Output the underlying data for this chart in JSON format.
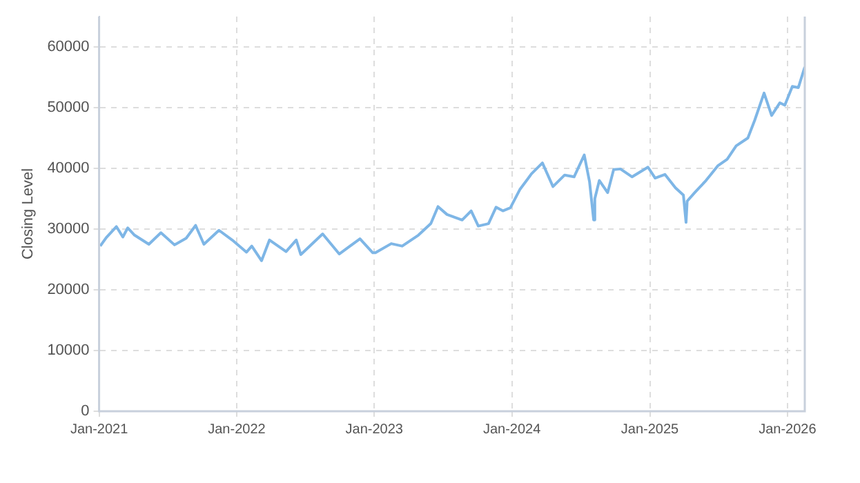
{
  "chart_data": {
    "type": "line",
    "ylabel": "Closing Level",
    "xlim": [
      "2021-01-01",
      "2026-02-16"
    ],
    "ylim": [
      0,
      65000
    ],
    "xticks": [
      {
        "value": "2021-01-01",
        "label": "Jan-2021"
      },
      {
        "value": "2022-01-01",
        "label": "Jan-2022"
      },
      {
        "value": "2023-01-01",
        "label": "Jan-2023"
      },
      {
        "value": "2024-01-01",
        "label": "Jan-2024"
      },
      {
        "value": "2025-01-01",
        "label": "Jan-2025"
      },
      {
        "value": "2026-01-01",
        "label": "Jan-2026"
      }
    ],
    "yticks": [
      0,
      10000,
      20000,
      30000,
      40000,
      50000,
      60000
    ],
    "grid": true,
    "legend": false,
    "marker": "none",
    "line_style": "solid",
    "x": [
      "2021-01-04",
      "2021-01-20",
      "2021-02-16",
      "2021-03-05",
      "2021-03-18",
      "2021-04-05",
      "2021-05-13",
      "2021-06-14",
      "2021-07-20",
      "2021-08-20",
      "2021-09-14",
      "2021-10-06",
      "2021-11-15",
      "2021-12-20",
      "2022-01-27",
      "2022-02-10",
      "2022-03-08",
      "2022-03-29",
      "2022-05-12",
      "2022-06-08",
      "2022-06-20",
      "2022-08-17",
      "2022-09-30",
      "2022-11-24",
      "2022-12-28",
      "2023-01-04",
      "2023-02-15",
      "2023-03-16",
      "2023-04-28",
      "2023-05-31",
      "2023-06-19",
      "2023-07-13",
      "2023-08-22",
      "2023-09-15",
      "2023-10-04",
      "2023-10-31",
      "2023-11-20",
      "2023-12-08",
      "2023-12-28",
      "2024-01-22",
      "2024-02-22",
      "2024-03-22",
      "2024-04-19",
      "2024-05-20",
      "2024-06-14",
      "2024-07-11",
      "2024-07-25",
      "2024-08-05",
      "2024-08-08",
      "2024-08-20",
      "2024-09-11",
      "2024-09-27",
      "2024-10-15",
      "2024-11-15",
      "2024-12-27",
      "2025-01-15",
      "2025-02-10",
      "2025-03-10",
      "2025-03-31",
      "2025-04-07",
      "2025-04-10",
      "2025-04-30",
      "2025-05-30",
      "2025-06-30",
      "2025-07-25",
      "2025-08-18",
      "2025-09-18",
      "2025-10-06",
      "2025-10-31",
      "2025-11-20",
      "2025-12-12",
      "2025-12-25",
      "2026-01-14",
      "2026-01-30",
      "2026-02-16"
    ],
    "series": [
      {
        "color": "#7eb6e6",
        "values": [
          27200,
          28600,
          30400,
          28700,
          30200,
          29000,
          27500,
          29400,
          27400,
          28500,
          30600,
          27500,
          29800,
          28200,
          26200,
          27200,
          24800,
          28200,
          26300,
          28200,
          25800,
          29200,
          25900,
          28400,
          26100,
          26100,
          27600,
          27200,
          29000,
          30900,
          33700,
          32400,
          31500,
          33000,
          30500,
          30900,
          33600,
          33000,
          33500,
          36500,
          39100,
          40900,
          37000,
          38900,
          38600,
          42200,
          37800,
          31500,
          35000,
          38000,
          36000,
          39800,
          39900,
          38600,
          40200,
          38400,
          39000,
          36800,
          35600,
          31100,
          34600,
          36000,
          38000,
          40400,
          41500,
          43700,
          45000,
          47900,
          52400,
          48700,
          50800,
          50400,
          53500,
          53300,
          56700
        ]
      }
    ]
  }
}
